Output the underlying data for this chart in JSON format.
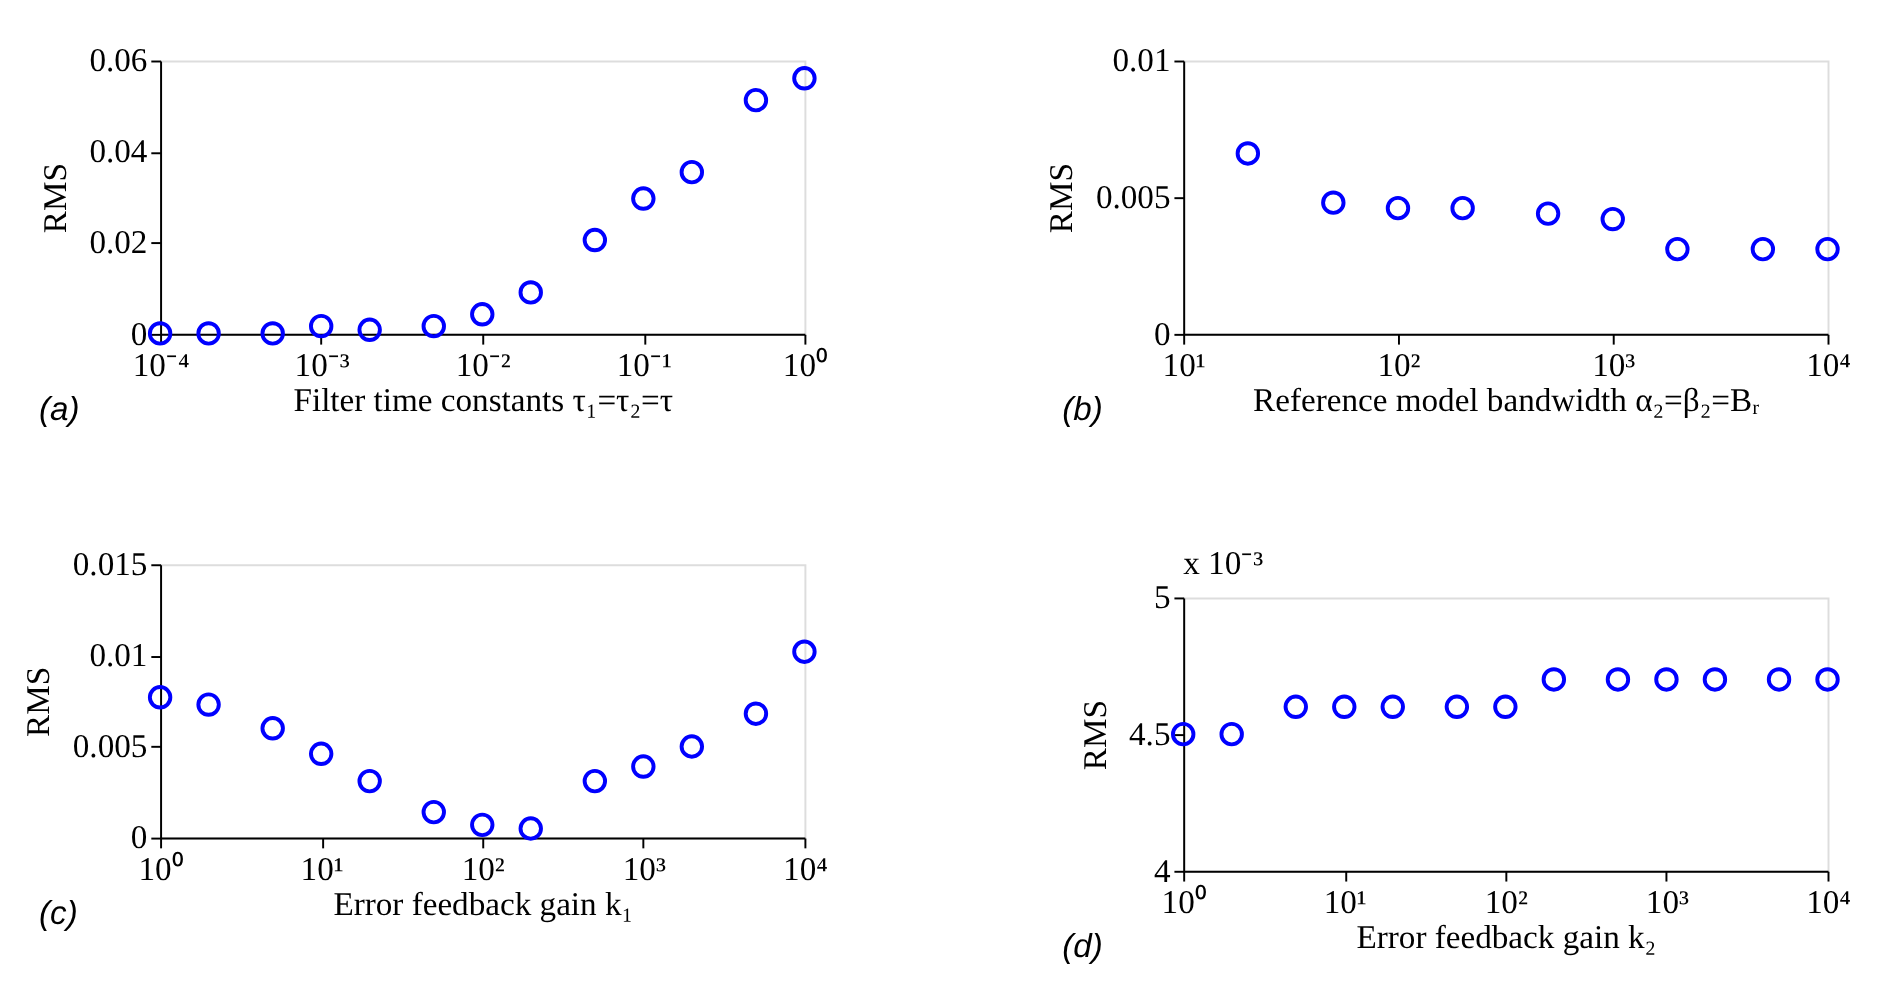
{
  "chart_data": [
    {
      "type": "scatter",
      "xlabel": "Filter time constants τ₁=τ₂=τ",
      "ylabel": "RMS",
      "annotations": [
        "(a)"
      ],
      "marker": "circle",
      "grid": false,
      "log": "x",
      "x": [
        0.0001,
        0.0002,
        0.0005,
        0.001,
        0.002,
        0.005,
        0.01,
        0.02,
        0.05,
        0.1,
        0.2,
        0.5,
        1
      ],
      "series": [
        {
          "color": "#0000ff",
          "values": [
            0.0001,
            0.0001,
            0.0001,
            0.0017,
            0.0009,
            0.0017,
            0.0043,
            0.0091,
            0.0206,
            0.0297,
            0.0355,
            0.0513,
            0.0561
          ]
        }
      ],
      "xlim": [
        0.0001,
        1
      ],
      "xticks": [
        {
          "value": 0.0001,
          "label": "10⁻⁴"
        },
        {
          "value": 0.001,
          "label": "10⁻³"
        },
        {
          "value": 0.01,
          "label": "10⁻²"
        },
        {
          "value": 0.1,
          "label": "10⁻¹"
        },
        {
          "value": 1,
          "label": "10⁰"
        }
      ],
      "ylim": [
        0,
        0.06
      ],
      "yticks": [
        {
          "value": 0,
          "label": "0"
        },
        0.02,
        0.04,
        0.06
      ]
    },
    {
      "type": "scatter",
      "xlabel": "Reference model bandwidth α₂=β₂=Bᵣ",
      "ylabel": "RMS",
      "annotations": [
        "(b)"
      ],
      "marker": "circle",
      "grid": false,
      "log": "x",
      "x": [
        20,
        50,
        100,
        200,
        500,
        1000,
        2000,
        5000,
        10000
      ],
      "series": [
        {
          "color": "#0000ff",
          "values": [
            0.0066,
            0.0048,
            0.0046,
            0.0046,
            0.0044,
            0.0042,
            0.0031,
            0.0031,
            0.0031
          ]
        }
      ],
      "xlim": [
        10,
        10000
      ],
      "xticks": [
        {
          "value": 10,
          "label": "10¹"
        },
        {
          "value": 100,
          "label": "10²"
        },
        {
          "value": 1000,
          "label": "10³"
        },
        {
          "value": 10000,
          "label": "10⁴"
        }
      ],
      "ylim": [
        0,
        0.01
      ],
      "yticks": [
        {
          "value": 0,
          "label": "0"
        },
        {
          "value": 0.005,
          "label": "0.005"
        },
        {
          "value": 0.01,
          "label": "0.01"
        }
      ]
    },
    {
      "type": "scatter",
      "xlabel": "Error feedback gain k₁",
      "ylabel": "RMS",
      "annotations": [
        "(c)"
      ],
      "marker": "circle",
      "grid": false,
      "log": "x",
      "x": [
        1,
        2,
        5,
        10,
        20,
        50,
        100,
        200,
        500,
        1000,
        2000,
        5000,
        10000
      ],
      "series": [
        {
          "color": "#0000ff",
          "values": [
            0.0077,
            0.0073,
            0.006,
            0.0046,
            0.0031,
            0.0014,
            0.0007,
            0.0005,
            0.0031,
            0.0039,
            0.005,
            0.0068,
            0.0102
          ]
        }
      ],
      "xlim": [
        1,
        10000
      ],
      "xticks": [
        {
          "value": 1,
          "label": "10⁰"
        },
        {
          "value": 10,
          "label": "10¹"
        },
        {
          "value": 100,
          "label": "10²"
        },
        {
          "value": 1000,
          "label": "10³"
        },
        {
          "value": 10000,
          "label": "10⁴"
        }
      ],
      "ylim": [
        0,
        0.015
      ],
      "yticks": [
        {
          "value": 0,
          "label": "0"
        },
        {
          "value": 0.005,
          "label": "0.005"
        },
        {
          "value": 0.01,
          "label": "0.01"
        },
        {
          "value": 0.015,
          "label": "0.015"
        }
      ]
    },
    {
      "type": "scatter",
      "xlabel": "Error feedback gain k₂",
      "ylabel": "RMS",
      "annotations": [
        "(d)",
        "x 10⁻³"
      ],
      "marker": "circle",
      "grid": false,
      "log": "x",
      "x": [
        1,
        2,
        5,
        10,
        20,
        50,
        100,
        200,
        500,
        1000,
        2000,
        5000,
        10000
      ],
      "series": [
        {
          "color": "#0000ff",
          "values": [
            4.5,
            4.5,
            4.6,
            4.6,
            4.6,
            4.6,
            4.6,
            4.7,
            4.7,
            4.7,
            4.7,
            4.7,
            4.7
          ]
        }
      ],
      "xlim": [
        1,
        10000
      ],
      "xticks": [
        {
          "value": 1,
          "label": "10⁰"
        },
        {
          "value": 10,
          "label": "10¹"
        },
        {
          "value": 100,
          "label": "10²"
        },
        {
          "value": 1000,
          "label": "10³"
        },
        {
          "value": 10000,
          "label": "10⁴"
        }
      ],
      "ylim": [
        4,
        5
      ],
      "yticks": [
        {
          "value": 4,
          "label": "4"
        },
        {
          "value": 4.5,
          "label": "4.5"
        },
        {
          "value": 5,
          "label": "5"
        }
      ]
    }
  ]
}
